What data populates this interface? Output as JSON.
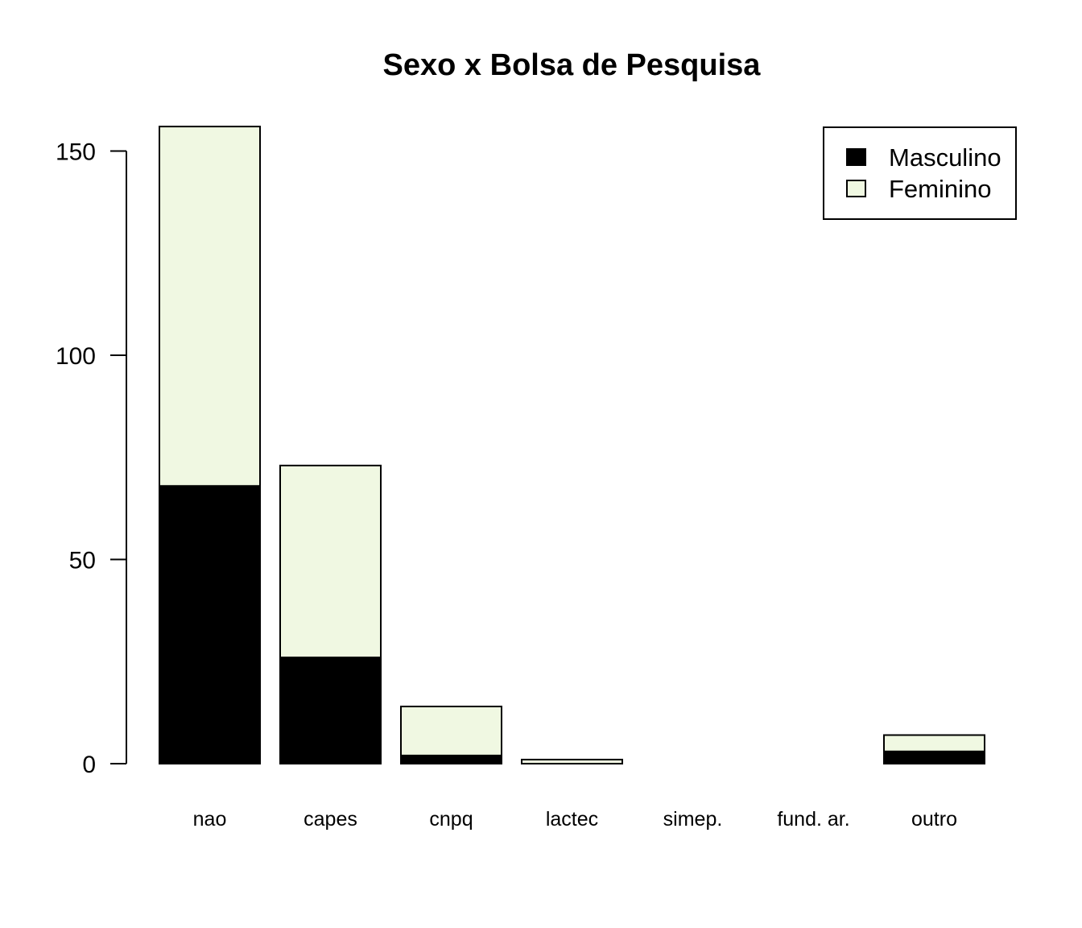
{
  "chart_data": {
    "type": "bar",
    "stacked": true,
    "title": "Sexo x Bolsa de Pesquisa",
    "xlabel": "",
    "ylabel": "",
    "categories": [
      "nao",
      "capes",
      "cnpq",
      "lactec",
      "simep.",
      "fund. ar.",
      "outro"
    ],
    "series": [
      {
        "name": "Masculino",
        "color": "#000000",
        "values": [
          68,
          26,
          2,
          0,
          0,
          0,
          3
        ]
      },
      {
        "name": "Feminino",
        "color": "#f0f8e2",
        "values": [
          88,
          47,
          12,
          1,
          0,
          0,
          4
        ]
      }
    ],
    "yticks": [
      0,
      50,
      100,
      150
    ],
    "ylim": [
      0,
      156
    ],
    "grid": false,
    "legend_position": "top-right"
  }
}
